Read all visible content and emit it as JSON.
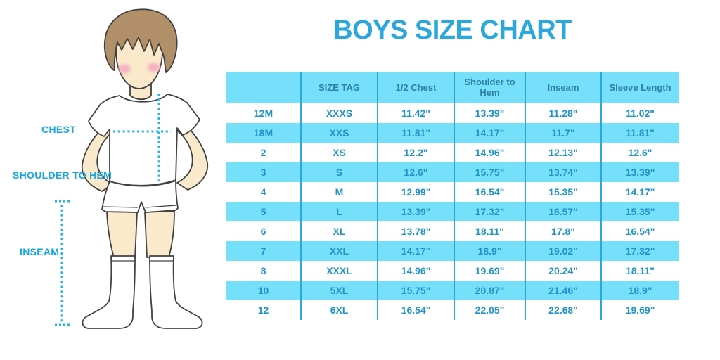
{
  "title": "BOYS SIZE CHART",
  "colors": {
    "title_blue": "#2AA8DD",
    "fill_cyan": "#76E0FA",
    "header_text": "#2C80A9",
    "cell_text": "#2194C6",
    "divider": "#2BA7DC",
    "label_cyan": "#15A6E3",
    "dot_cyan": "#25B2E8",
    "skin": "#FBE9CB",
    "hair": "#B18F68",
    "cheek": "#F4B3BE",
    "outline": "#414141",
    "garment_white": "#FFFFFF"
  },
  "figure": {
    "labels": {
      "chest": "CHEST",
      "shoulder_to_hem": "SHOULDER TO HEM",
      "inseam": "INSEAM"
    }
  },
  "chart_data": {
    "type": "table",
    "title": "BOYS SIZE CHART",
    "columns": [
      "",
      "SIZE TAG",
      "1/2 Chest",
      "Shoulder to Hem",
      "Inseam",
      "Sleeve Length"
    ],
    "rows": [
      [
        "12M",
        "XXXS",
        "11.42\"",
        "13.39\"",
        "11.28\"",
        "11.02\""
      ],
      [
        "18M",
        "XXS",
        "11.81\"",
        "14.17\"",
        "11.7\"",
        "11.81\""
      ],
      [
        "2",
        "XS",
        "12.2\"",
        "14.96\"",
        "12.13\"",
        "12.6\""
      ],
      [
        "3",
        "S",
        "12.6\"",
        "15.75\"",
        "13.74\"",
        "13.39\""
      ],
      [
        "4",
        "M",
        "12.99\"",
        "16.54\"",
        "15.35\"",
        "14.17\""
      ],
      [
        "5",
        "L",
        "13.39\"",
        "17.32\"",
        "16.57\"",
        "15.35\""
      ],
      [
        "6",
        "XL",
        "13.78\"",
        "18.11\"",
        "17.8\"",
        "16.54\""
      ],
      [
        "7",
        "XXL",
        "14.17\"",
        "18.9\"",
        "19.02\"",
        "17.32\""
      ],
      [
        "8",
        "XXXL",
        "14.96\"",
        "19.69\"",
        "20.24\"",
        "18.11\""
      ],
      [
        "10",
        "5XL",
        "15.75\"",
        "20.87\"",
        "21.46\"",
        "18.9\""
      ],
      [
        "12",
        "6XL",
        "16.54\"",
        "22.05\"",
        "22.68\"",
        "19.69\""
      ]
    ],
    "row_striping": [
      "white",
      "cyan"
    ],
    "units": "inches"
  }
}
